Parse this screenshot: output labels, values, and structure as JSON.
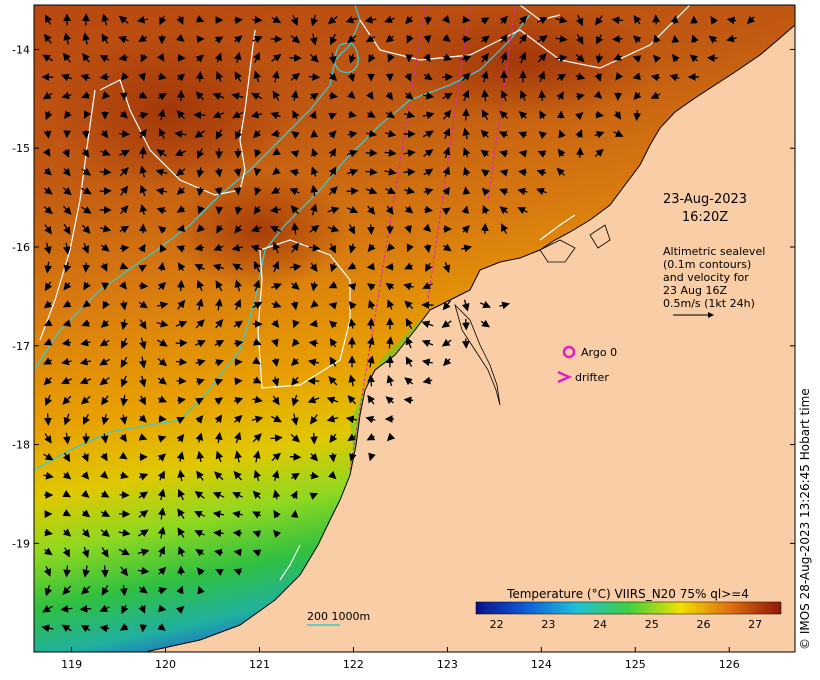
{
  "map": {
    "lon_range": [
      118.6,
      126.7
    ],
    "lat_range": [
      -20.1,
      -13.55
    ],
    "lon_ticks": [
      "119",
      "120",
      "121",
      "122",
      "123",
      "124",
      "125",
      "126"
    ],
    "lat_ticks": [
      "-14",
      "-15",
      "-16",
      "-17",
      "-18",
      "-19"
    ],
    "land_color": "#f9cda5",
    "coast_color": "#000000",
    "contour_color": "#ffffff",
    "isobath_color": "#3cc8d0",
    "track_color": "#e020c0"
  },
  "timestamp": {
    "date": "23-Aug-2023",
    "time": "16:20Z"
  },
  "altimetry_note": {
    "line1": "Altimetric sealevel",
    "line2": "(0.1m contours)",
    "line3": "and velocity for",
    "line4": "23 Aug 16Z",
    "line5": "0.5m/s (1kt 24h)"
  },
  "legend": {
    "argo_label": "Argo 0",
    "drifter_label": "drifter",
    "argo_color": "#e020c0",
    "drifter_color": "#e020c0",
    "isobath_label": "200  1000m"
  },
  "colorbar": {
    "title": "Temperature (°C) VIIRS_N20 75% ql>=4",
    "ticks": [
      "22",
      "23",
      "24",
      "25",
      "26",
      "27"
    ],
    "stops": [
      "#08108a",
      "#1060d8",
      "#20c0d8",
      "#40d040",
      "#f0e000",
      "#e07010",
      "#901808"
    ]
  },
  "credit": "© IMOS 28-Aug-2023 13:26:45 Hobart time"
}
